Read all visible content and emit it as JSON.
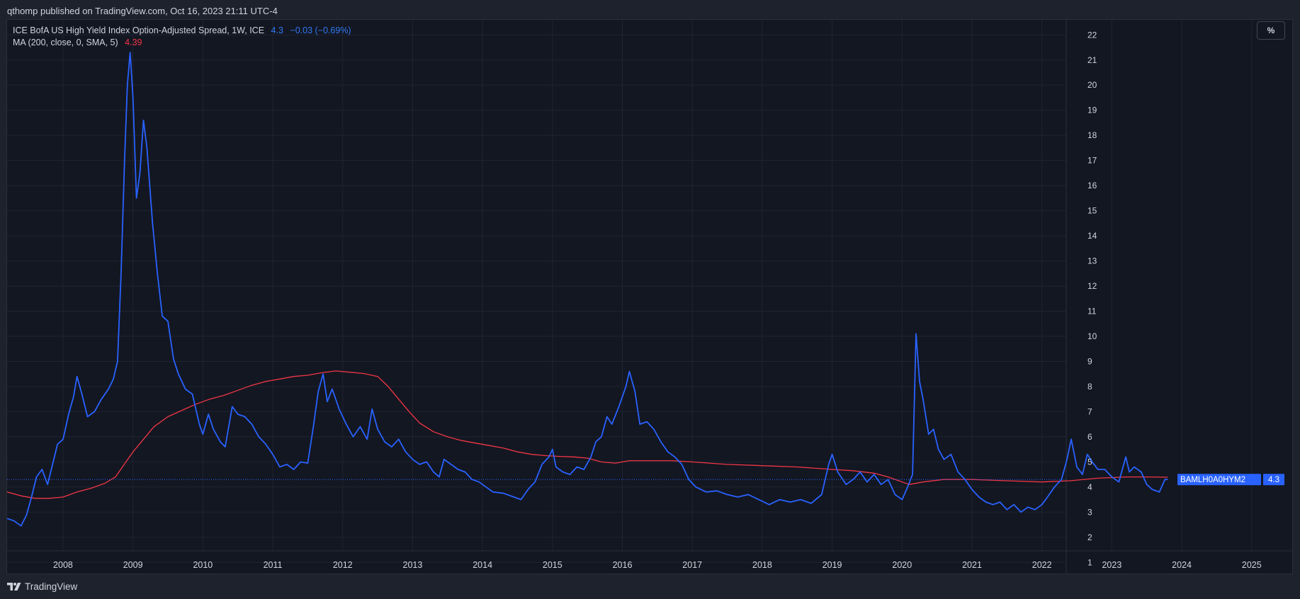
{
  "header": {
    "publish_text": "qthomp published on TradingView.com, Oct 16, 2023 21:11 UTC-4"
  },
  "legend": {
    "main_label": "ICE BofA US High Yield Index Option-Adjusted Spread, 1W, ICE",
    "main_value": "4.3",
    "main_change": "−0.03 (−0.69%)",
    "ma_label": "MA (200, close, 0, SMA, 5)",
    "ma_value": "4.39"
  },
  "toolbar": {
    "unit_label": "%"
  },
  "price_label": {
    "symbol": "BAMLH0A0HYM2",
    "value": "4.3"
  },
  "footer": {
    "brand": "TradingView",
    "logo_icon": "tradingview-logo-icon"
  },
  "colors": {
    "background": "#131722",
    "frame": "#1e222d",
    "grid": "#1f2431",
    "series": "#2962ff",
    "ma": "#f23645",
    "text": "#d1d4dc"
  },
  "chart_data": {
    "type": "line",
    "x_ticks": [
      "2008",
      "2009",
      "2010",
      "2011",
      "2012",
      "2013",
      "2014",
      "2015",
      "2016",
      "2017",
      "2018",
      "2019",
      "2020",
      "2021",
      "2022",
      "2023",
      "2024",
      "2025"
    ],
    "y_ticks": [
      "1",
      "2",
      "3",
      "4",
      "5",
      "6",
      "7",
      "8",
      "9",
      "10",
      "11",
      "12",
      "13",
      "14",
      "15",
      "16",
      "17",
      "18",
      "19",
      "20",
      "21",
      "22"
    ],
    "xlim": [
      2007.2,
      2025.6
    ],
    "ylim": [
      0.5,
      22.6
    ],
    "grid": true,
    "last_value": 4.3,
    "series": [
      {
        "name": "ICE BofA US High Yield Index Option-Adjusted Spread",
        "color": "#2962ff",
        "points": [
          [
            2007.2,
            2.75
          ],
          [
            2007.3,
            2.65
          ],
          [
            2007.4,
            2.45
          ],
          [
            2007.48,
            2.9
          ],
          [
            2007.55,
            3.6
          ],
          [
            2007.62,
            4.4
          ],
          [
            2007.7,
            4.7
          ],
          [
            2007.78,
            4.1
          ],
          [
            2007.85,
            4.9
          ],
          [
            2007.92,
            5.7
          ],
          [
            2008.0,
            5.9
          ],
          [
            2008.08,
            6.9
          ],
          [
            2008.15,
            7.6
          ],
          [
            2008.2,
            8.4
          ],
          [
            2008.27,
            7.7
          ],
          [
            2008.35,
            6.8
          ],
          [
            2008.45,
            7.0
          ],
          [
            2008.55,
            7.5
          ],
          [
            2008.65,
            7.9
          ],
          [
            2008.72,
            8.3
          ],
          [
            2008.78,
            9.0
          ],
          [
            2008.83,
            12.5
          ],
          [
            2008.88,
            17.0
          ],
          [
            2008.92,
            20.0
          ],
          [
            2008.96,
            21.3
          ],
          [
            2009.0,
            19.5
          ],
          [
            2009.05,
            15.5
          ],
          [
            2009.1,
            16.5
          ],
          [
            2009.15,
            18.6
          ],
          [
            2009.2,
            17.5
          ],
          [
            2009.28,
            14.5
          ],
          [
            2009.35,
            12.5
          ],
          [
            2009.42,
            10.8
          ],
          [
            2009.5,
            10.6
          ],
          [
            2009.58,
            9.1
          ],
          [
            2009.65,
            8.5
          ],
          [
            2009.75,
            7.9
          ],
          [
            2009.85,
            7.7
          ],
          [
            2009.95,
            6.5
          ],
          [
            2010.0,
            6.1
          ],
          [
            2010.08,
            6.9
          ],
          [
            2010.15,
            6.3
          ],
          [
            2010.25,
            5.8
          ],
          [
            2010.32,
            5.6
          ],
          [
            2010.42,
            7.2
          ],
          [
            2010.5,
            6.9
          ],
          [
            2010.6,
            6.8
          ],
          [
            2010.7,
            6.5
          ],
          [
            2010.8,
            6.0
          ],
          [
            2010.9,
            5.7
          ],
          [
            2011.0,
            5.3
          ],
          [
            2011.1,
            4.8
          ],
          [
            2011.2,
            4.9
          ],
          [
            2011.3,
            4.7
          ],
          [
            2011.4,
            5.0
          ],
          [
            2011.5,
            4.95
          ],
          [
            2011.58,
            6.4
          ],
          [
            2011.65,
            7.8
          ],
          [
            2011.72,
            8.5
          ],
          [
            2011.78,
            7.4
          ],
          [
            2011.85,
            7.9
          ],
          [
            2011.95,
            7.1
          ],
          [
            2012.05,
            6.5
          ],
          [
            2012.15,
            6.0
          ],
          [
            2012.25,
            6.4
          ],
          [
            2012.35,
            5.9
          ],
          [
            2012.42,
            7.1
          ],
          [
            2012.5,
            6.3
          ],
          [
            2012.6,
            5.8
          ],
          [
            2012.7,
            5.6
          ],
          [
            2012.8,
            5.9
          ],
          [
            2012.9,
            5.4
          ],
          [
            2013.0,
            5.1
          ],
          [
            2013.1,
            4.9
          ],
          [
            2013.2,
            5.0
          ],
          [
            2013.3,
            4.6
          ],
          [
            2013.38,
            4.4
          ],
          [
            2013.45,
            5.1
          ],
          [
            2013.55,
            4.9
          ],
          [
            2013.65,
            4.7
          ],
          [
            2013.75,
            4.6
          ],
          [
            2013.85,
            4.3
          ],
          [
            2013.95,
            4.2
          ],
          [
            2014.05,
            4.0
          ],
          [
            2014.15,
            3.8
          ],
          [
            2014.3,
            3.75
          ],
          [
            2014.45,
            3.6
          ],
          [
            2014.55,
            3.5
          ],
          [
            2014.65,
            3.9
          ],
          [
            2014.75,
            4.2
          ],
          [
            2014.85,
            4.9
          ],
          [
            2014.95,
            5.2
          ],
          [
            2015.0,
            5.5
          ],
          [
            2015.05,
            4.8
          ],
          [
            2015.15,
            4.6
          ],
          [
            2015.25,
            4.5
          ],
          [
            2015.35,
            4.8
          ],
          [
            2015.45,
            4.7
          ],
          [
            2015.55,
            5.2
          ],
          [
            2015.62,
            5.8
          ],
          [
            2015.7,
            6.0
          ],
          [
            2015.78,
            6.8
          ],
          [
            2015.85,
            6.5
          ],
          [
            2015.95,
            7.2
          ],
          [
            2016.05,
            8.0
          ],
          [
            2016.1,
            8.6
          ],
          [
            2016.18,
            7.8
          ],
          [
            2016.25,
            6.5
          ],
          [
            2016.35,
            6.6
          ],
          [
            2016.45,
            6.3
          ],
          [
            2016.55,
            5.8
          ],
          [
            2016.65,
            5.4
          ],
          [
            2016.75,
            5.2
          ],
          [
            2016.85,
            4.9
          ],
          [
            2016.95,
            4.3
          ],
          [
            2017.05,
            4.0
          ],
          [
            2017.2,
            3.8
          ],
          [
            2017.35,
            3.85
          ],
          [
            2017.5,
            3.7
          ],
          [
            2017.65,
            3.6
          ],
          [
            2017.8,
            3.7
          ],
          [
            2017.95,
            3.5
          ],
          [
            2018.1,
            3.3
          ],
          [
            2018.25,
            3.5
          ],
          [
            2018.4,
            3.4
          ],
          [
            2018.55,
            3.5
          ],
          [
            2018.7,
            3.35
          ],
          [
            2018.85,
            3.7
          ],
          [
            2018.95,
            4.9
          ],
          [
            2019.0,
            5.3
          ],
          [
            2019.08,
            4.6
          ],
          [
            2019.2,
            4.1
          ],
          [
            2019.3,
            4.3
          ],
          [
            2019.4,
            4.6
          ],
          [
            2019.5,
            4.2
          ],
          [
            2019.6,
            4.5
          ],
          [
            2019.7,
            4.1
          ],
          [
            2019.8,
            4.3
          ],
          [
            2019.9,
            3.7
          ],
          [
            2020.0,
            3.5
          ],
          [
            2020.08,
            4.0
          ],
          [
            2020.15,
            4.5
          ],
          [
            2020.2,
            10.1
          ],
          [
            2020.25,
            8.2
          ],
          [
            2020.3,
            7.5
          ],
          [
            2020.38,
            6.1
          ],
          [
            2020.45,
            6.3
          ],
          [
            2020.52,
            5.5
          ],
          [
            2020.6,
            5.1
          ],
          [
            2020.7,
            5.3
          ],
          [
            2020.8,
            4.6
          ],
          [
            2020.9,
            4.3
          ],
          [
            2021.0,
            3.9
          ],
          [
            2021.1,
            3.6
          ],
          [
            2021.2,
            3.4
          ],
          [
            2021.3,
            3.3
          ],
          [
            2021.4,
            3.4
          ],
          [
            2021.5,
            3.1
          ],
          [
            2021.6,
            3.3
          ],
          [
            2021.7,
            3.0
          ],
          [
            2021.8,
            3.2
          ],
          [
            2021.9,
            3.1
          ],
          [
            2022.0,
            3.3
          ],
          [
            2022.08,
            3.6
          ],
          [
            2022.18,
            4.0
          ],
          [
            2022.28,
            4.3
          ],
          [
            2022.35,
            5.0
          ],
          [
            2022.42,
            5.9
          ],
          [
            2022.5,
            4.8
          ],
          [
            2022.58,
            4.5
          ],
          [
            2022.65,
            5.3
          ],
          [
            2022.72,
            5.0
          ],
          [
            2022.8,
            4.7
          ],
          [
            2022.9,
            4.7
          ],
          [
            2023.0,
            4.4
          ],
          [
            2023.1,
            4.2
          ],
          [
            2023.2,
            5.2
          ],
          [
            2023.25,
            4.6
          ],
          [
            2023.32,
            4.8
          ],
          [
            2023.42,
            4.6
          ],
          [
            2023.5,
            4.1
          ],
          [
            2023.58,
            3.9
          ],
          [
            2023.68,
            3.8
          ],
          [
            2023.76,
            4.3
          ],
          [
            2023.8,
            4.3
          ]
        ]
      },
      {
        "name": "MA (200, close, 0, SMA, 5)",
        "color": "#f23645",
        "points": [
          [
            2007.2,
            3.8
          ],
          [
            2007.4,
            3.65
          ],
          [
            2007.6,
            3.55
          ],
          [
            2007.8,
            3.55
          ],
          [
            2008.0,
            3.6
          ],
          [
            2008.2,
            3.8
          ],
          [
            2008.4,
            3.95
          ],
          [
            2008.6,
            4.15
          ],
          [
            2008.75,
            4.4
          ],
          [
            2008.85,
            4.8
          ],
          [
            2009.0,
            5.4
          ],
          [
            2009.15,
            5.9
          ],
          [
            2009.3,
            6.4
          ],
          [
            2009.5,
            6.8
          ],
          [
            2009.7,
            7.05
          ],
          [
            2009.9,
            7.3
          ],
          [
            2010.1,
            7.5
          ],
          [
            2010.3,
            7.65
          ],
          [
            2010.5,
            7.85
          ],
          [
            2010.7,
            8.05
          ],
          [
            2010.9,
            8.2
          ],
          [
            2011.1,
            8.3
          ],
          [
            2011.3,
            8.4
          ],
          [
            2011.5,
            8.45
          ],
          [
            2011.7,
            8.55
          ],
          [
            2011.9,
            8.62
          ],
          [
            2012.1,
            8.57
          ],
          [
            2012.3,
            8.52
          ],
          [
            2012.5,
            8.4
          ],
          [
            2012.65,
            8.0
          ],
          [
            2012.8,
            7.5
          ],
          [
            2012.95,
            7.0
          ],
          [
            2013.1,
            6.55
          ],
          [
            2013.3,
            6.2
          ],
          [
            2013.5,
            6.0
          ],
          [
            2013.7,
            5.85
          ],
          [
            2013.9,
            5.75
          ],
          [
            2014.1,
            5.65
          ],
          [
            2014.3,
            5.55
          ],
          [
            2014.5,
            5.4
          ],
          [
            2014.7,
            5.3
          ],
          [
            2014.9,
            5.25
          ],
          [
            2015.1,
            5.22
          ],
          [
            2015.3,
            5.2
          ],
          [
            2015.5,
            5.15
          ],
          [
            2015.7,
            5.0
          ],
          [
            2015.9,
            4.95
          ],
          [
            2016.1,
            5.05
          ],
          [
            2016.4,
            5.05
          ],
          [
            2016.7,
            5.05
          ],
          [
            2017.0,
            5.0
          ],
          [
            2017.5,
            4.9
          ],
          [
            2018.0,
            4.85
          ],
          [
            2018.5,
            4.8
          ],
          [
            2019.0,
            4.7
          ],
          [
            2019.3,
            4.65
          ],
          [
            2019.6,
            4.55
          ],
          [
            2019.8,
            4.4
          ],
          [
            2020.0,
            4.2
          ],
          [
            2020.1,
            4.1
          ],
          [
            2020.3,
            4.2
          ],
          [
            2020.6,
            4.3
          ],
          [
            2021.0,
            4.3
          ],
          [
            2021.5,
            4.25
          ],
          [
            2022.0,
            4.2
          ],
          [
            2022.4,
            4.25
          ],
          [
            2022.8,
            4.35
          ],
          [
            2023.2,
            4.4
          ],
          [
            2023.5,
            4.4
          ],
          [
            2023.8,
            4.39
          ]
        ]
      }
    ]
  }
}
